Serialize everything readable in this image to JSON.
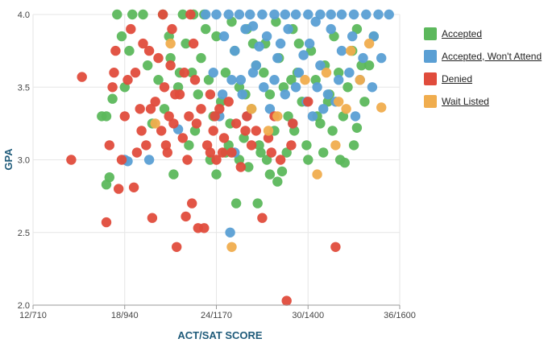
{
  "chart_data": {
    "type": "scatter",
    "xlabel": "ACT/SAT SCORE",
    "ylabel": "GPA",
    "x_ticks": [
      {
        "value": 12,
        "label": "12/710"
      },
      {
        "value": 18,
        "label": "18/940"
      },
      {
        "value": 24,
        "label": "24/1170"
      },
      {
        "value": 30,
        "label": "30/1400"
      },
      {
        "value": 36,
        "label": "36/1600"
      }
    ],
    "y_ticks": [
      {
        "value": 2.0,
        "label": "2.0"
      },
      {
        "value": 2.5,
        "label": "2.5"
      },
      {
        "value": 3.0,
        "label": "3.0"
      },
      {
        "value": 3.5,
        "label": "3.5"
      },
      {
        "value": 4.0,
        "label": "4.0"
      }
    ],
    "xlim": [
      12,
      36
    ],
    "ylim": [
      2.0,
      4.0
    ],
    "grid": true,
    "legend_position": "right",
    "series": [
      {
        "name": "Accepted",
        "color": "#5cb85c",
        "points": [
          [
            17.5,
            4.0
          ],
          [
            18.5,
            4.0
          ],
          [
            19.2,
            4.0
          ],
          [
            20.5,
            4.0
          ],
          [
            21.8,
            4.0
          ],
          [
            22.5,
            4.0
          ],
          [
            23.2,
            4.0
          ],
          [
            17.8,
            3.85
          ],
          [
            18.3,
            3.75
          ],
          [
            19.5,
            3.65
          ],
          [
            20.2,
            3.55
          ],
          [
            21.0,
            3.7
          ],
          [
            21.5,
            3.5
          ],
          [
            22.0,
            3.8
          ],
          [
            22.4,
            3.6
          ],
          [
            22.8,
            3.45
          ],
          [
            23.0,
            3.7
          ],
          [
            23.5,
            3.55
          ],
          [
            23.8,
            3.3
          ],
          [
            24.0,
            3.85
          ],
          [
            24.3,
            3.4
          ],
          [
            24.6,
            3.6
          ],
          [
            24.9,
            3.25
          ],
          [
            25.2,
            3.75
          ],
          [
            25.5,
            3.5
          ],
          [
            25.8,
            3.15
          ],
          [
            26.0,
            3.9
          ],
          [
            26.3,
            3.35
          ],
          [
            26.6,
            3.65
          ],
          [
            26.9,
            3.05
          ],
          [
            27.2,
            3.8
          ],
          [
            27.5,
            3.45
          ],
          [
            27.8,
            3.2
          ],
          [
            28.1,
            3.7
          ],
          [
            28.4,
            3.5
          ],
          [
            28.7,
            3.3
          ],
          [
            29.0,
            3.9
          ],
          [
            29.3,
            3.6
          ],
          [
            29.6,
            3.4
          ],
          [
            29.9,
            3.1
          ],
          [
            30.2,
            3.75
          ],
          [
            30.5,
            3.55
          ],
          [
            30.8,
            3.25
          ],
          [
            31.1,
            3.65
          ],
          [
            31.4,
            3.45
          ],
          [
            31.7,
            3.85
          ],
          [
            32.0,
            3.6
          ],
          [
            32.3,
            3.3
          ],
          [
            32.6,
            3.5
          ],
          [
            32.9,
            3.75
          ],
          [
            33.2,
            3.9
          ],
          [
            33.5,
            3.65
          ],
          [
            16.5,
            3.3
          ],
          [
            16.8,
            3.3
          ],
          [
            17.0,
            2.88
          ],
          [
            16.8,
            2.83
          ],
          [
            17.2,
            3.42
          ],
          [
            18.0,
            3.5
          ],
          [
            19.8,
            3.25
          ],
          [
            20.6,
            3.35
          ],
          [
            21.2,
            2.9
          ],
          [
            22.2,
            3.1
          ],
          [
            23.6,
            3.0
          ],
          [
            24.0,
            2.9
          ],
          [
            24.8,
            3.1
          ],
          [
            25.5,
            3.0
          ],
          [
            26.1,
            2.95
          ],
          [
            26.8,
            3.1
          ],
          [
            27.5,
            2.9
          ],
          [
            28.0,
            2.85
          ],
          [
            28.6,
            3.05
          ],
          [
            25.3,
            2.7
          ],
          [
            26.7,
            2.7
          ],
          [
            29.1,
            3.2
          ],
          [
            30.0,
            3.0
          ],
          [
            31.0,
            3.05
          ],
          [
            31.6,
            3.2
          ],
          [
            32.1,
            3.0
          ],
          [
            32.4,
            2.98
          ],
          [
            33.2,
            3.22
          ],
          [
            30.6,
            3.3
          ],
          [
            31.3,
            3.4
          ],
          [
            27.1,
            3.6
          ],
          [
            26.4,
            3.8
          ],
          [
            25.0,
            3.95
          ],
          [
            27.9,
            3.95
          ],
          [
            24.6,
            3.05
          ],
          [
            25.9,
            3.45
          ],
          [
            29.4,
            3.8
          ],
          [
            28.9,
            3.55
          ],
          [
            23.3,
            3.9
          ],
          [
            22.6,
            3.2
          ],
          [
            21.6,
            3.6
          ],
          [
            20.9,
            3.85
          ],
          [
            33.7,
            3.4
          ],
          [
            34.0,
            3.65
          ],
          [
            34.3,
            3.85
          ],
          [
            33.0,
            3.1
          ],
          [
            27.3,
            3.0
          ],
          [
            28.3,
            2.92
          ]
        ]
      },
      {
        "name": "Accepted, Won't Attend",
        "color": "#5a9fd4",
        "points": [
          [
            23.3,
            4.0
          ],
          [
            24.0,
            4.0
          ],
          [
            24.8,
            4.0
          ],
          [
            25.5,
            4.0
          ],
          [
            26.2,
            4.0
          ],
          [
            27.0,
            4.0
          ],
          [
            27.8,
            4.0
          ],
          [
            28.5,
            4.0
          ],
          [
            29.2,
            4.0
          ],
          [
            30.0,
            4.0
          ],
          [
            30.8,
            4.0
          ],
          [
            31.5,
            4.0
          ],
          [
            32.2,
            4.0
          ],
          [
            33.0,
            4.0
          ],
          [
            33.8,
            4.0
          ],
          [
            34.6,
            4.0
          ],
          [
            35.3,
            4.0
          ],
          [
            24.5,
            3.85
          ],
          [
            25.2,
            3.75
          ],
          [
            25.9,
            3.9
          ],
          [
            26.6,
            3.65
          ],
          [
            27.3,
            3.85
          ],
          [
            28.0,
            3.7
          ],
          [
            28.7,
            3.9
          ],
          [
            29.4,
            3.6
          ],
          [
            30.1,
            3.8
          ],
          [
            30.8,
            3.65
          ],
          [
            31.5,
            3.9
          ],
          [
            32.2,
            3.75
          ],
          [
            32.9,
            3.85
          ],
          [
            33.6,
            3.7
          ],
          [
            34.3,
            3.85
          ],
          [
            25.0,
            3.55
          ],
          [
            25.7,
            3.45
          ],
          [
            26.4,
            3.6
          ],
          [
            27.1,
            3.5
          ],
          [
            27.8,
            3.55
          ],
          [
            28.5,
            3.45
          ],
          [
            29.2,
            3.5
          ],
          [
            29.9,
            3.4
          ],
          [
            30.6,
            3.5
          ],
          [
            31.3,
            3.45
          ],
          [
            32.0,
            3.55
          ],
          [
            32.7,
            3.6
          ],
          [
            24.2,
            3.3
          ],
          [
            26.0,
            3.3
          ],
          [
            27.5,
            3.35
          ],
          [
            29.0,
            3.25
          ],
          [
            30.3,
            3.3
          ],
          [
            31.0,
            3.35
          ],
          [
            31.8,
            3.4
          ],
          [
            33.4,
            3.55
          ],
          [
            34.8,
            3.7
          ],
          [
            26.8,
            3.78
          ],
          [
            28.2,
            3.8
          ],
          [
            29.7,
            3.72
          ],
          [
            23.8,
            3.6
          ],
          [
            24.4,
            3.45
          ],
          [
            18.0,
            3.0
          ],
          [
            18.2,
            2.99
          ],
          [
            19.6,
            3.0
          ],
          [
            21.5,
            3.21
          ],
          [
            25.2,
            3.05
          ],
          [
            24.9,
            2.5
          ],
          [
            25.6,
            3.55
          ],
          [
            33.1,
            3.3
          ],
          [
            34.2,
            3.5
          ],
          [
            30.5,
            3.95
          ],
          [
            26.4,
            3.92
          ]
        ]
      },
      {
        "name": "Denied",
        "color": "#e04c3c",
        "points": [
          [
            14.5,
            3.0
          ],
          [
            15.2,
            3.57
          ],
          [
            16.8,
            2.57
          ],
          [
            17.0,
            3.1
          ],
          [
            17.2,
            3.5
          ],
          [
            17.4,
            3.75
          ],
          [
            17.6,
            2.8
          ],
          [
            17.8,
            3.0
          ],
          [
            18.0,
            3.3
          ],
          [
            18.2,
            3.55
          ],
          [
            18.4,
            3.9
          ],
          [
            18.6,
            2.81
          ],
          [
            18.8,
            3.05
          ],
          [
            19.0,
            3.35
          ],
          [
            19.2,
            3.8
          ],
          [
            19.4,
            3.1
          ],
          [
            19.6,
            3.75
          ],
          [
            19.8,
            2.6
          ],
          [
            20.0,
            3.4
          ],
          [
            20.2,
            3.7
          ],
          [
            20.4,
            3.2
          ],
          [
            20.6,
            3.5
          ],
          [
            20.8,
            3.05
          ],
          [
            21.0,
            3.65
          ],
          [
            21.2,
            3.25
          ],
          [
            21.4,
            2.4
          ],
          [
            21.6,
            3.45
          ],
          [
            21.8,
            3.15
          ],
          [
            22.0,
            2.61
          ],
          [
            22.2,
            3.3
          ],
          [
            22.4,
            2.7
          ],
          [
            22.6,
            3.55
          ],
          [
            22.8,
            2.53
          ],
          [
            23.0,
            3.35
          ],
          [
            23.2,
            2.53
          ],
          [
            23.4,
            3.1
          ],
          [
            23.6,
            3.45
          ],
          [
            23.8,
            3.2
          ],
          [
            24.0,
            3.0
          ],
          [
            24.2,
            3.35
          ],
          [
            24.5,
            3.15
          ],
          [
            24.8,
            3.4
          ],
          [
            25.0,
            3.05
          ],
          [
            25.3,
            3.25
          ],
          [
            25.6,
            2.95
          ],
          [
            26.0,
            3.3
          ],
          [
            26.3,
            3.1
          ],
          [
            26.6,
            3.2
          ],
          [
            27.0,
            2.6
          ],
          [
            27.4,
            3.15
          ],
          [
            27.8,
            3.3
          ],
          [
            28.2,
            3.0
          ],
          [
            28.6,
            2.03
          ],
          [
            29.0,
            3.25
          ],
          [
            30.0,
            3.4
          ],
          [
            31.8,
            2.4
          ],
          [
            20.5,
            4.0
          ],
          [
            22.3,
            4.0
          ],
          [
            21.1,
            3.9
          ],
          [
            22.1,
            3.0
          ],
          [
            19.1,
            3.2
          ],
          [
            20.7,
            3.1
          ],
          [
            23.6,
            3.05
          ],
          [
            18.7,
            3.6
          ],
          [
            17.3,
            3.6
          ],
          [
            21.9,
            3.6
          ],
          [
            22.5,
            3.8
          ],
          [
            23.9,
            3.3
          ],
          [
            24.4,
            3.05
          ],
          [
            25.9,
            3.2
          ],
          [
            27.6,
            3.05
          ],
          [
            28.9,
            3.1
          ],
          [
            19.7,
            3.35
          ],
          [
            21.3,
            3.45
          ],
          [
            20.9,
            3.3
          ],
          [
            22.7,
            3.25
          ]
        ]
      },
      {
        "name": "Wait Listed",
        "color": "#f0ad4e",
        "points": [
          [
            20.0,
            3.25
          ],
          [
            21.0,
            3.8
          ],
          [
            25.0,
            2.4
          ],
          [
            30.6,
            2.9
          ],
          [
            31.8,
            3.1
          ],
          [
            32.0,
            3.4
          ],
          [
            32.5,
            3.35
          ],
          [
            33.4,
            3.55
          ],
          [
            34.0,
            3.8
          ],
          [
            34.8,
            3.36
          ],
          [
            28.0,
            3.3
          ],
          [
            29.8,
            3.55
          ],
          [
            26.3,
            3.35
          ],
          [
            31.2,
            3.6
          ],
          [
            32.8,
            3.75
          ],
          [
            27.4,
            3.2
          ]
        ]
      }
    ]
  }
}
